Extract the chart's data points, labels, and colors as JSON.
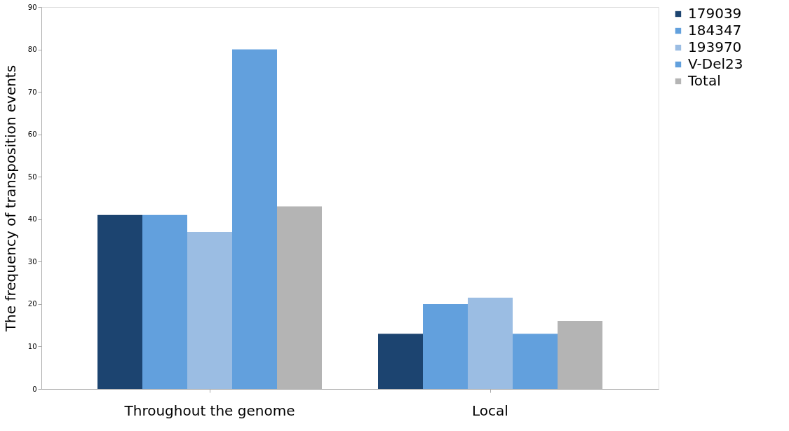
{
  "chart_data": {
    "type": "bar",
    "ylabel": "The frequency of transposition events",
    "categories": [
      "Throughout the genome",
      "Local"
    ],
    "series": [
      {
        "name": "179039",
        "color": "#1c4470",
        "values": [
          41,
          13
        ]
      },
      {
        "name": "184347",
        "color": "#62a0dd",
        "values": [
          41,
          20
        ]
      },
      {
        "name": "193970",
        "color": "#9bbde3",
        "values": [
          37,
          21.5
        ]
      },
      {
        "name": "V-Del23",
        "color": "#62a0dd",
        "values": [
          80,
          13
        ]
      },
      {
        "name": "Total",
        "color": "#b4b4b4",
        "values": [
          43,
          16
        ]
      }
    ],
    "ylim": [
      0,
      90
    ],
    "yticks": [
      0,
      10,
      20,
      30,
      40,
      50,
      60,
      70,
      80,
      90
    ],
    "grid": false,
    "legend": "right"
  }
}
